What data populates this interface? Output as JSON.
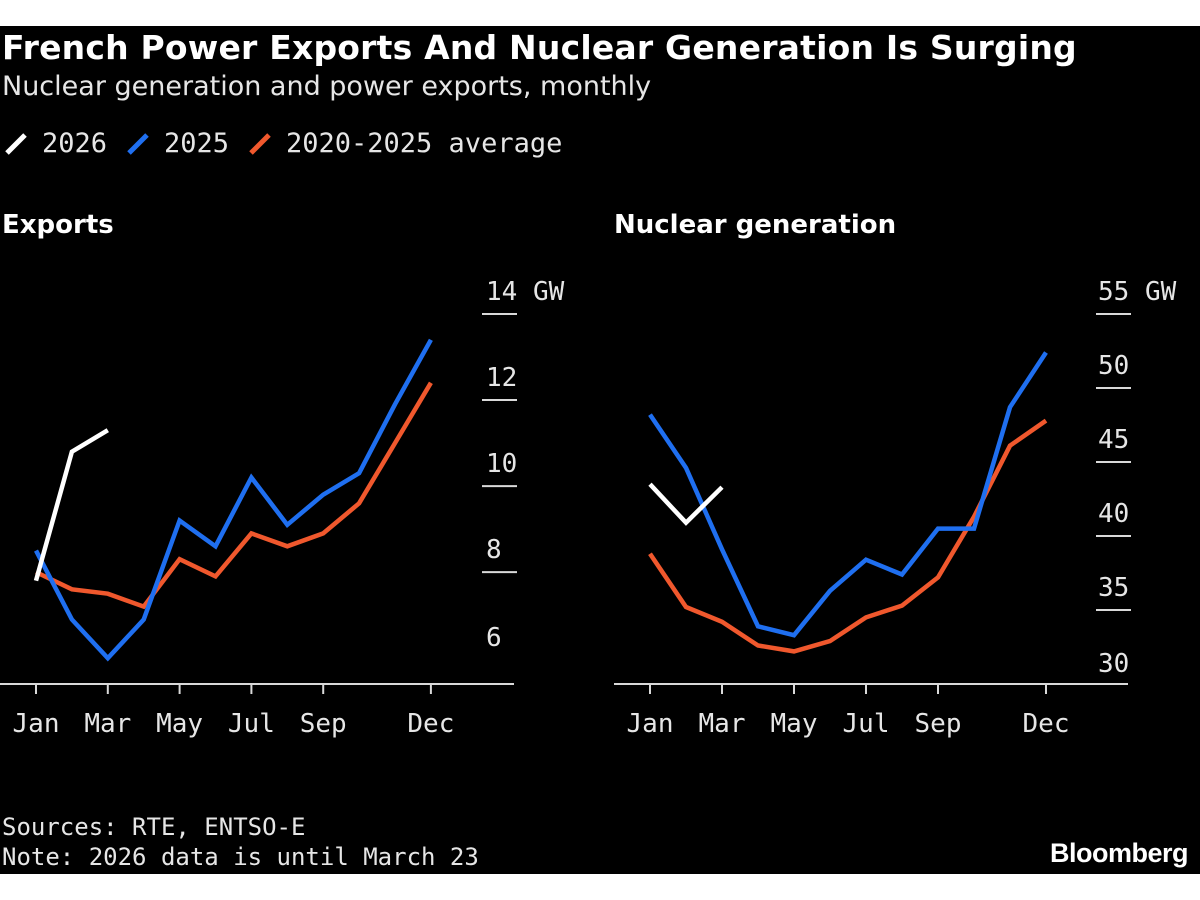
{
  "title": "French Power Exports And Nuclear Generation Is Surging",
  "subtitle": "Nuclear generation and power exports, monthly",
  "legend": [
    {
      "label": "2026",
      "color": "#ffffff"
    },
    {
      "label": "2025",
      "color": "#1f6ff0"
    },
    {
      "label": "2020-2025 average",
      "color": "#f0582d"
    }
  ],
  "chart_data": [
    {
      "type": "line",
      "title": "Exports",
      "ylabel": "GW",
      "unit_tick_label": "14 GW",
      "ylim": [
        5.4,
        14
      ],
      "yticks": [
        14,
        12,
        10,
        8,
        6
      ],
      "ytick_labels": [
        "14 GW",
        "12",
        "10",
        "8",
        "6"
      ],
      "xlabels": [
        "Jan",
        "Mar",
        "May",
        "Jul",
        "Sep",
        "Dec"
      ],
      "xlabel_months": [
        1,
        3,
        5,
        7,
        9,
        12
      ],
      "series": [
        {
          "name": "2026",
          "color": "#ffffff",
          "x": [
            1,
            2,
            3
          ],
          "values": [
            7.8,
            10.8,
            11.3
          ]
        },
        {
          "name": "2025",
          "color": "#1f6ff0",
          "x": [
            1,
            2,
            3,
            4,
            5,
            6,
            7,
            8,
            9,
            10,
            11,
            12
          ],
          "values": [
            8.5,
            6.9,
            6.0,
            6.9,
            9.2,
            8.6,
            10.2,
            9.1,
            9.8,
            10.3,
            11.9,
            13.4
          ]
        },
        {
          "name": "2020-2025 average",
          "color": "#f0582d",
          "x": [
            1,
            2,
            3,
            4,
            5,
            6,
            7,
            8,
            9,
            10,
            11,
            12
          ],
          "values": [
            8.0,
            7.6,
            7.5,
            7.2,
            8.3,
            7.9,
            8.9,
            8.6,
            8.9,
            9.6,
            11.0,
            12.4
          ]
        }
      ]
    },
    {
      "type": "line",
      "title": "Nuclear generation",
      "ylabel": "GW",
      "unit_tick_label": "55 GW",
      "ylim": [
        30,
        55
      ],
      "yticks": [
        55,
        50,
        45,
        40,
        35,
        30
      ],
      "ytick_labels": [
        "55 GW",
        "50",
        "45",
        "40",
        "35",
        "30"
      ],
      "xlabels": [
        "Jan",
        "Mar",
        "May",
        "Jul",
        "Sep",
        "Dec"
      ],
      "xlabel_months": [
        1,
        3,
        5,
        7,
        9,
        12
      ],
      "series": [
        {
          "name": "2026",
          "color": "#ffffff",
          "x": [
            1,
            2,
            3
          ],
          "values": [
            43.5,
            40.9,
            43.3
          ]
        },
        {
          "name": "2025",
          "color": "#1f6ff0",
          "x": [
            1,
            2,
            3,
            4,
            5,
            6,
            7,
            8,
            9,
            10,
            11,
            12
          ],
          "values": [
            48.2,
            44.6,
            39.1,
            33.9,
            33.3,
            36.3,
            38.4,
            37.4,
            40.5,
            40.5,
            48.7,
            52.4
          ]
        },
        {
          "name": "2020-2025 average",
          "color": "#f0582d",
          "x": [
            1,
            2,
            3,
            4,
            5,
            6,
            7,
            8,
            9,
            10,
            11,
            12
          ],
          "values": [
            38.8,
            35.2,
            34.2,
            32.6,
            32.2,
            32.9,
            34.5,
            35.3,
            37.2,
            41.3,
            46.1,
            47.8
          ]
        }
      ]
    }
  ],
  "footer": {
    "sources": "Sources: RTE, ENTSO-E",
    "note": "Note: 2026 data is until March 23"
  },
  "brand": "Bloomberg"
}
